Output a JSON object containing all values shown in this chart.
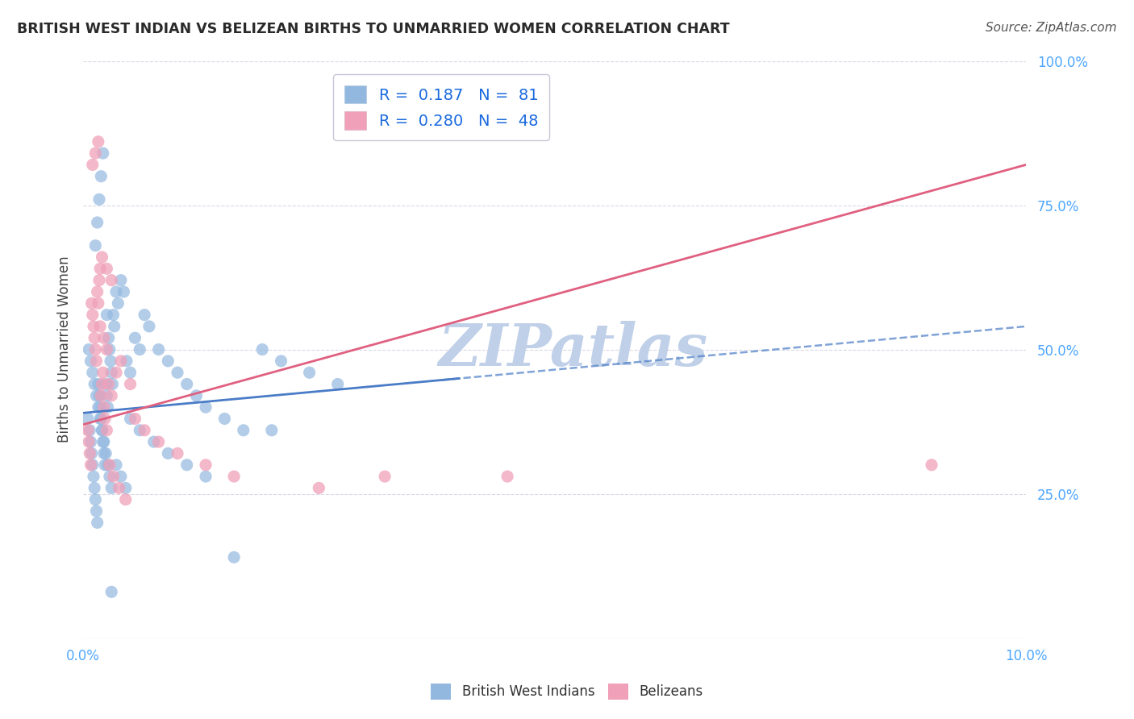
{
  "title": "BRITISH WEST INDIAN VS BELIZEAN BIRTHS TO UNMARRIED WOMEN CORRELATION CHART",
  "source": "Source: ZipAtlas.com",
  "ylabel": "Births to Unmarried Women",
  "xlim": [
    0.0,
    10.0
  ],
  "ylim": [
    0.0,
    100.0
  ],
  "ytick_vals": [
    25,
    50,
    75,
    100
  ],
  "ytick_labels": [
    "25.0%",
    "50.0%",
    "75.0%",
    "100.0%"
  ],
  "xtick_vals": [
    0,
    10
  ],
  "xtick_labels": [
    "0.0%",
    "10.0%"
  ],
  "series1_color": "#93b8e0",
  "series2_color": "#f0a0b8",
  "trend1_color": "#4a7cc7",
  "trend1_style": "-",
  "trend2_color": "#e06080",
  "trend2_style": "-",
  "background_color": "#ffffff",
  "grid_color": "#d8d8e8",
  "title_color": "#2a2a2a",
  "axis_label_color": "#4da6ff",
  "legend_text_color": "#1a6adf",
  "watermark": "ZIPatlas",
  "watermark_color": "#c0d0e8",
  "legend1_label": "R =  0.187   N =  81",
  "legend2_label": "R =  0.280   N =  48",
  "bottom_legend1": "British West Indians",
  "bottom_legend2": "Belizeans",
  "trend1_intercept": 39.0,
  "trend1_slope": 1.5,
  "trend2_intercept": 37.0,
  "trend2_slope": 4.5,
  "s1_x": [
    0.05,
    0.07,
    0.08,
    0.09,
    0.1,
    0.11,
    0.12,
    0.13,
    0.14,
    0.15,
    0.16,
    0.17,
    0.18,
    0.19,
    0.2,
    0.21,
    0.22,
    0.23,
    0.24,
    0.25,
    0.26,
    0.27,
    0.28,
    0.29,
    0.3,
    0.31,
    0.32,
    0.33,
    0.35,
    0.37,
    0.4,
    0.43,
    0.46,
    0.5,
    0.55,
    0.6,
    0.65,
    0.7,
    0.8,
    0.9,
    1.0,
    1.1,
    1.2,
    1.3,
    1.5,
    1.7,
    1.9,
    2.1,
    2.4,
    2.7,
    0.06,
    0.08,
    0.1,
    0.12,
    0.14,
    0.16,
    0.18,
    0.2,
    0.22,
    0.24,
    0.26,
    0.28,
    0.3,
    0.35,
    0.4,
    0.45,
    0.5,
    0.6,
    0.75,
    0.9,
    1.1,
    1.3,
    1.6,
    2.0,
    0.13,
    0.15,
    0.17,
    0.19,
    0.21,
    0.25,
    0.3
  ],
  "s1_y": [
    38.0,
    36.0,
    34.0,
    32.0,
    30.0,
    28.0,
    26.0,
    24.0,
    22.0,
    20.0,
    44.0,
    42.0,
    40.0,
    38.0,
    36.0,
    34.0,
    32.0,
    30.0,
    44.0,
    42.0,
    40.0,
    52.0,
    50.0,
    48.0,
    46.0,
    44.0,
    56.0,
    54.0,
    60.0,
    58.0,
    62.0,
    60.0,
    48.0,
    46.0,
    52.0,
    50.0,
    56.0,
    54.0,
    50.0,
    48.0,
    46.0,
    44.0,
    42.0,
    40.0,
    38.0,
    36.0,
    50.0,
    48.0,
    46.0,
    44.0,
    50.0,
    48.0,
    46.0,
    44.0,
    42.0,
    40.0,
    38.0,
    36.0,
    34.0,
    32.0,
    30.0,
    28.0,
    26.0,
    30.0,
    28.0,
    26.0,
    38.0,
    36.0,
    34.0,
    32.0,
    30.0,
    28.0,
    14.0,
    36.0,
    68.0,
    72.0,
    76.0,
    80.0,
    84.0,
    56.0,
    8.0
  ],
  "s2_x": [
    0.05,
    0.06,
    0.07,
    0.08,
    0.09,
    0.1,
    0.11,
    0.12,
    0.13,
    0.14,
    0.15,
    0.16,
    0.17,
    0.18,
    0.19,
    0.2,
    0.21,
    0.22,
    0.23,
    0.25,
    0.27,
    0.3,
    0.35,
    0.4,
    0.5,
    0.18,
    0.22,
    0.25,
    0.28,
    0.32,
    0.38,
    0.45,
    0.55,
    0.65,
    0.8,
    1.0,
    1.3,
    1.6,
    2.5,
    3.2,
    0.1,
    0.13,
    0.16,
    0.2,
    0.25,
    0.3,
    4.5,
    9.0
  ],
  "s2_y": [
    36.0,
    34.0,
    32.0,
    30.0,
    58.0,
    56.0,
    54.0,
    52.0,
    50.0,
    48.0,
    60.0,
    58.0,
    62.0,
    64.0,
    42.0,
    44.0,
    46.0,
    40.0,
    38.0,
    36.0,
    44.0,
    42.0,
    46.0,
    48.0,
    44.0,
    54.0,
    52.0,
    50.0,
    30.0,
    28.0,
    26.0,
    24.0,
    38.0,
    36.0,
    34.0,
    32.0,
    30.0,
    28.0,
    26.0,
    28.0,
    82.0,
    84.0,
    86.0,
    66.0,
    64.0,
    62.0,
    28.0,
    30.0
  ]
}
